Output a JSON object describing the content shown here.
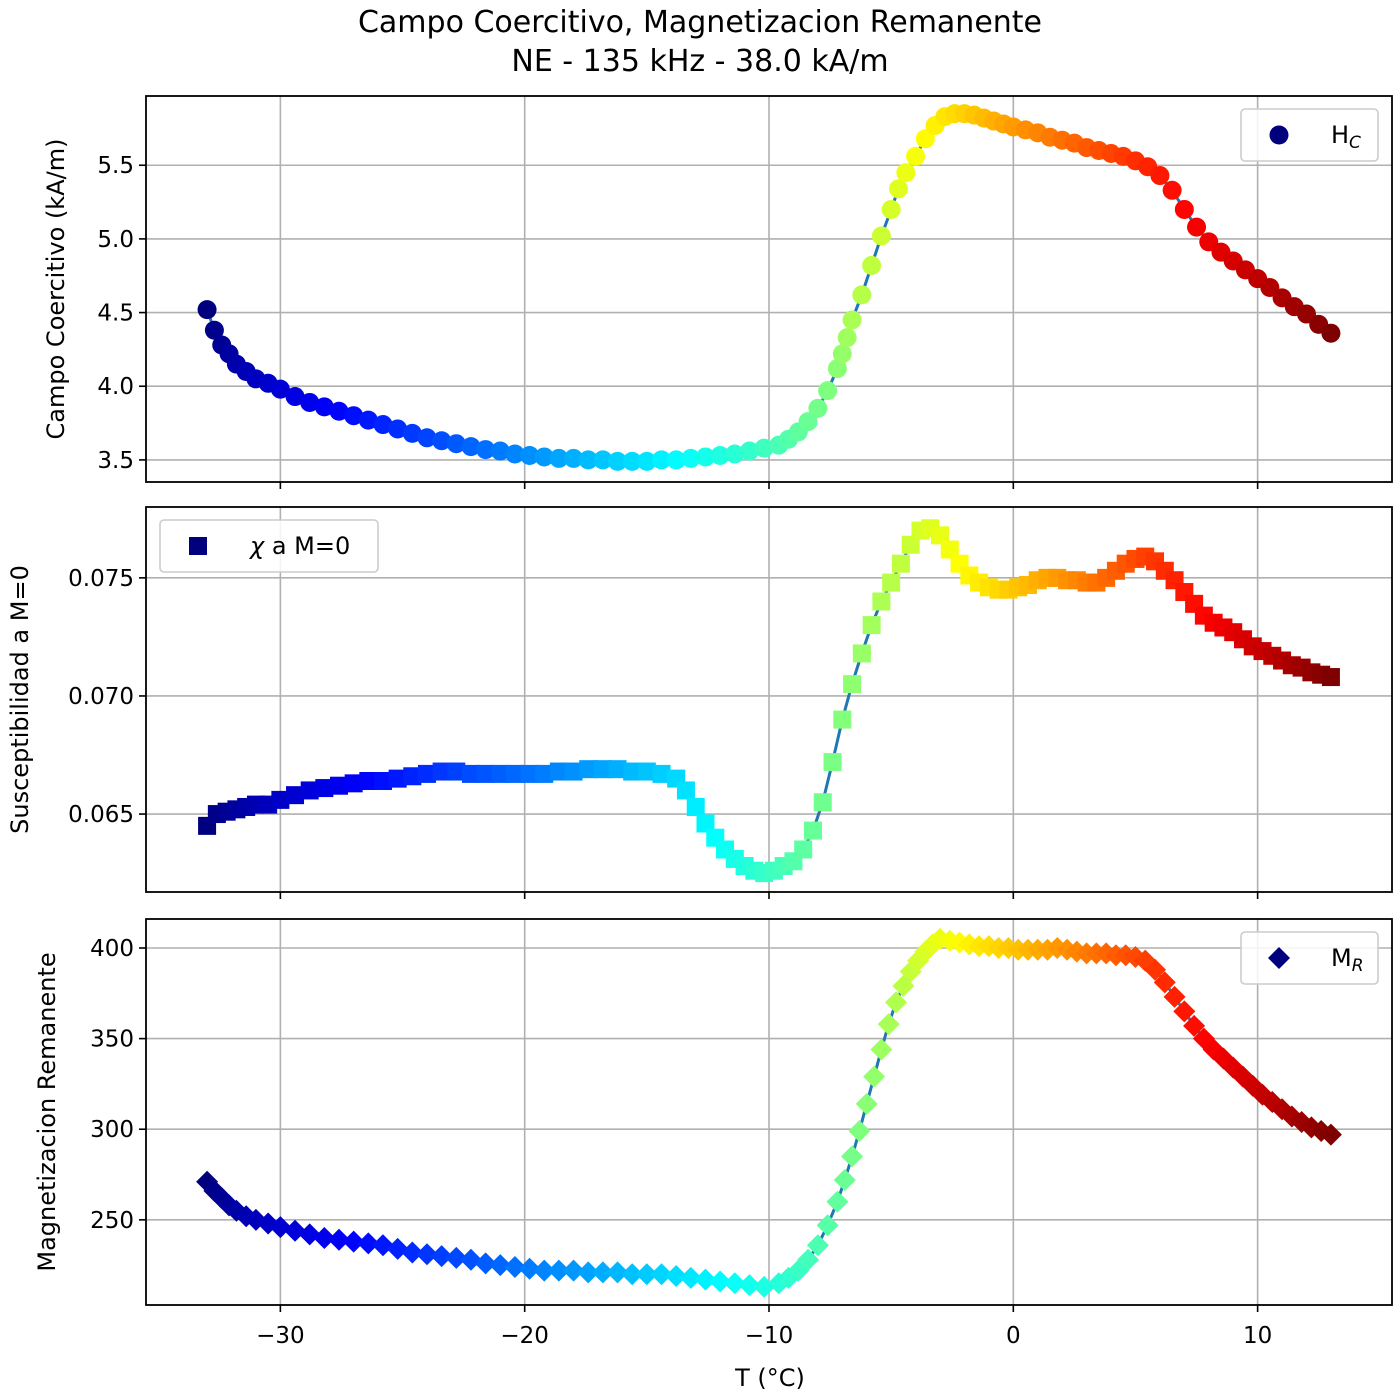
{
  "title": "Campo Coercitivo, Magnetizacion Remanente",
  "subtitle": "NE - 135 kHz - 38.0 kA/m",
  "xlabel": "T (°C)",
  "x_ticks": [
    -30,
    -20,
    -10,
    0,
    10
  ],
  "x_tick_labels": [
    "−30",
    "−20",
    "−10",
    "0",
    "10"
  ],
  "colormap": [
    "#00007f",
    "#0000ff",
    "#007fff",
    "#00ffff",
    "#7fff7f",
    "#ffff00",
    "#ff7f00",
    "#ff0000",
    "#7f0000"
  ],
  "line_color": "#1f77b4",
  "chart_data": [
    {
      "type": "line",
      "ylabel": "Campo Coercitivo (kA/m)",
      "xlim": [
        -35.5,
        15.5
      ],
      "ylim": [
        3.35,
        5.97
      ],
      "y_ticks": [
        3.5,
        4.0,
        4.5,
        5.0,
        5.5
      ],
      "y_tick_labels": [
        "3.5",
        "4.0",
        "4.5",
        "5.0",
        "5.5"
      ],
      "grid": true,
      "marker": "circle",
      "legend": {
        "label": "H",
        "sub": "C",
        "position": "upper right"
      },
      "series": [
        {
          "x": [
            -33.0,
            -32.7,
            -32.4,
            -32.1,
            -31.8,
            -31.4,
            -31.0,
            -30.5,
            -30.0,
            -29.4,
            -28.8,
            -28.2,
            -27.6,
            -27.0,
            -26.4,
            -25.8,
            -25.2,
            -24.6,
            -24.0,
            -23.4,
            -22.8,
            -22.2,
            -21.6,
            -21.0,
            -20.4,
            -19.8,
            -19.2,
            -18.6,
            -18.0,
            -17.4,
            -16.8,
            -16.2,
            -15.6,
            -15.0,
            -14.4,
            -13.8,
            -13.2,
            -12.6,
            -12.0,
            -11.4,
            -10.8,
            -10.2,
            -9.6,
            -9.2,
            -8.8,
            -8.4,
            -8.0,
            -7.6,
            -7.2,
            -7.0,
            -6.8,
            -6.6,
            -6.2,
            -5.8,
            -5.4,
            -5.0,
            -4.7,
            -4.4,
            -4.0,
            -3.6,
            -3.2,
            -2.8,
            -2.4,
            -2.0,
            -1.6,
            -1.2,
            -0.8,
            -0.4,
            0.0,
            0.5,
            1.0,
            1.5,
            2.0,
            2.5,
            3.0,
            3.5,
            4.0,
            4.5,
            5.0,
            5.5,
            6.0,
            6.5,
            7.0,
            7.5,
            8.0,
            8.5,
            9.0,
            9.5,
            10.0,
            10.5,
            11.0,
            11.5,
            12.0,
            12.5,
            13.0
          ],
          "y": [
            4.52,
            4.38,
            4.28,
            4.22,
            4.15,
            4.1,
            4.05,
            4.02,
            3.98,
            3.93,
            3.89,
            3.86,
            3.83,
            3.8,
            3.77,
            3.74,
            3.71,
            3.68,
            3.65,
            3.63,
            3.61,
            3.59,
            3.57,
            3.56,
            3.54,
            3.53,
            3.52,
            3.51,
            3.51,
            3.5,
            3.5,
            3.49,
            3.49,
            3.49,
            3.5,
            3.5,
            3.51,
            3.52,
            3.53,
            3.54,
            3.56,
            3.58,
            3.6,
            3.64,
            3.69,
            3.76,
            3.85,
            3.97,
            4.12,
            4.22,
            4.33,
            4.45,
            4.62,
            4.82,
            5.02,
            5.2,
            5.34,
            5.45,
            5.56,
            5.68,
            5.77,
            5.83,
            5.85,
            5.85,
            5.84,
            5.82,
            5.8,
            5.78,
            5.76,
            5.74,
            5.72,
            5.69,
            5.67,
            5.65,
            5.62,
            5.6,
            5.58,
            5.56,
            5.53,
            5.49,
            5.43,
            5.33,
            5.2,
            5.08,
            4.98,
            4.91,
            4.85,
            4.79,
            4.73,
            4.67,
            4.6,
            4.54,
            4.49,
            4.42,
            4.36
          ]
        }
      ]
    },
    {
      "type": "line",
      "ylabel": "Susceptibilidad a M=0",
      "xlim": [
        -35.5,
        15.5
      ],
      "ylim": [
        0.0617,
        0.078
      ],
      "y_ticks": [
        0.065,
        0.07,
        0.075
      ],
      "y_tick_labels": [
        "0.065",
        "0.070",
        "0.075"
      ],
      "grid": true,
      "marker": "square",
      "legend": {
        "label": "χ a M=0",
        "position": "upper left"
      },
      "series": [
        {
          "x": [
            -33.0,
            -32.6,
            -32.2,
            -31.8,
            -31.4,
            -31.0,
            -30.5,
            -30.0,
            -29.4,
            -28.8,
            -28.2,
            -27.6,
            -27.0,
            -26.4,
            -25.8,
            -25.2,
            -24.6,
            -24.0,
            -23.4,
            -22.8,
            -22.2,
            -21.6,
            -21.0,
            -20.4,
            -19.8,
            -19.2,
            -18.6,
            -18.0,
            -17.4,
            -16.8,
            -16.2,
            -15.6,
            -15.0,
            -14.4,
            -13.8,
            -13.4,
            -13.0,
            -12.6,
            -12.2,
            -11.8,
            -11.4,
            -11.0,
            -10.6,
            -10.2,
            -9.8,
            -9.4,
            -9.0,
            -8.6,
            -8.2,
            -7.8,
            -7.4,
            -7.0,
            -6.6,
            -6.2,
            -5.8,
            -5.4,
            -5.0,
            -4.6,
            -4.2,
            -3.8,
            -3.4,
            -3.0,
            -2.6,
            -2.2,
            -1.8,
            -1.4,
            -1.0,
            -0.6,
            -0.2,
            0.2,
            0.6,
            1.0,
            1.4,
            1.8,
            2.2,
            2.6,
            3.0,
            3.4,
            3.8,
            4.2,
            4.6,
            5.0,
            5.4,
            5.8,
            6.2,
            6.6,
            7.0,
            7.4,
            7.8,
            8.2,
            8.6,
            9.0,
            9.4,
            9.8,
            10.2,
            10.6,
            11.0,
            11.4,
            11.8,
            12.2,
            12.6,
            13.0
          ],
          "y": [
            0.0645,
            0.065,
            0.0651,
            0.0652,
            0.0653,
            0.0654,
            0.0654,
            0.0656,
            0.0658,
            0.066,
            0.0661,
            0.0662,
            0.0663,
            0.0664,
            0.0664,
            0.0665,
            0.0666,
            0.0667,
            0.0668,
            0.0668,
            0.0667,
            0.0667,
            0.0667,
            0.0667,
            0.0667,
            0.0667,
            0.0668,
            0.0668,
            0.0669,
            0.0669,
            0.0669,
            0.0668,
            0.0668,
            0.0667,
            0.0665,
            0.066,
            0.0653,
            0.0646,
            0.064,
            0.0635,
            0.0631,
            0.0628,
            0.0626,
            0.0625,
            0.0626,
            0.0628,
            0.063,
            0.0635,
            0.0643,
            0.0655,
            0.0672,
            0.069,
            0.0705,
            0.0718,
            0.073,
            0.074,
            0.0748,
            0.0756,
            0.0764,
            0.077,
            0.0771,
            0.0768,
            0.0762,
            0.0756,
            0.0751,
            0.0748,
            0.0746,
            0.0745,
            0.0745,
            0.0746,
            0.0747,
            0.0749,
            0.075,
            0.075,
            0.0749,
            0.0749,
            0.0748,
            0.0748,
            0.075,
            0.0753,
            0.0756,
            0.0758,
            0.0759,
            0.0757,
            0.0753,
            0.0749,
            0.0744,
            0.0739,
            0.0734,
            0.0731,
            0.0729,
            0.0727,
            0.0724,
            0.0721,
            0.0719,
            0.0717,
            0.0715,
            0.0713,
            0.0712,
            0.071,
            0.0709,
            0.0708
          ]
        }
      ]
    },
    {
      "type": "line",
      "ylabel": "Magnetizacion Remanente",
      "xlim": [
        -35.5,
        15.5
      ],
      "ylim": [
        203,
        416
      ],
      "y_ticks": [
        250,
        300,
        350,
        400
      ],
      "y_tick_labels": [
        "250",
        "300",
        "350",
        "400"
      ],
      "grid": true,
      "marker": "diamond",
      "legend": {
        "label": "M",
        "sub": "R",
        "position": "upper right"
      },
      "series": [
        {
          "x": [
            -33.0,
            -32.7,
            -32.4,
            -32.1,
            -31.8,
            -31.4,
            -31.0,
            -30.5,
            -30.0,
            -29.4,
            -28.8,
            -28.2,
            -27.6,
            -27.0,
            -26.4,
            -25.8,
            -25.2,
            -24.6,
            -24.0,
            -23.4,
            -22.8,
            -22.2,
            -21.6,
            -21.0,
            -20.4,
            -19.8,
            -19.2,
            -18.6,
            -18.0,
            -17.4,
            -16.8,
            -16.2,
            -15.6,
            -15.0,
            -14.4,
            -13.8,
            -13.2,
            -12.6,
            -12.0,
            -11.4,
            -10.8,
            -10.2,
            -9.6,
            -9.2,
            -8.8,
            -8.4,
            -8.0,
            -7.6,
            -7.2,
            -6.9,
            -6.6,
            -6.3,
            -6.0,
            -5.7,
            -5.4,
            -5.1,
            -4.8,
            -4.5,
            -4.2,
            -3.9,
            -3.6,
            -3.3,
            -3.0,
            -2.6,
            -2.2,
            -1.8,
            -1.4,
            -1.0,
            -0.6,
            -0.2,
            0.2,
            0.6,
            1.0,
            1.4,
            1.8,
            2.2,
            2.6,
            3.0,
            3.4,
            3.8,
            4.2,
            4.6,
            5.0,
            5.4,
            5.8,
            6.2,
            6.6,
            7.0,
            7.4,
            7.8,
            8.2,
            8.6,
            9.0,
            9.4,
            9.8,
            10.2,
            10.6,
            11.0,
            11.4,
            11.8,
            12.2,
            12.6,
            13.0
          ],
          "y": [
            271,
            266,
            262,
            258,
            255,
            252,
            250,
            248,
            246,
            244,
            242,
            240,
            239,
            238,
            237,
            236,
            234,
            232,
            231,
            230,
            229,
            228,
            226,
            225,
            224,
            223,
            222,
            222,
            222,
            221,
            221,
            221,
            220,
            220,
            220,
            219,
            218,
            217,
            216,
            215,
            214,
            213,
            215,
            218,
            222,
            228,
            236,
            247,
            260,
            272,
            285,
            299,
            314,
            329,
            344,
            358,
            370,
            379,
            387,
            393,
            398,
            402,
            405,
            404,
            403,
            402,
            401,
            401,
            400,
            400,
            399,
            399,
            399,
            399,
            400,
            399,
            398,
            397,
            397,
            397,
            396,
            396,
            395,
            393,
            388,
            381,
            373,
            365,
            357,
            350,
            344,
            339,
            334,
            329,
            324,
            319,
            315,
            311,
            307,
            304,
            301,
            299,
            297
          ]
        }
      ]
    }
  ]
}
